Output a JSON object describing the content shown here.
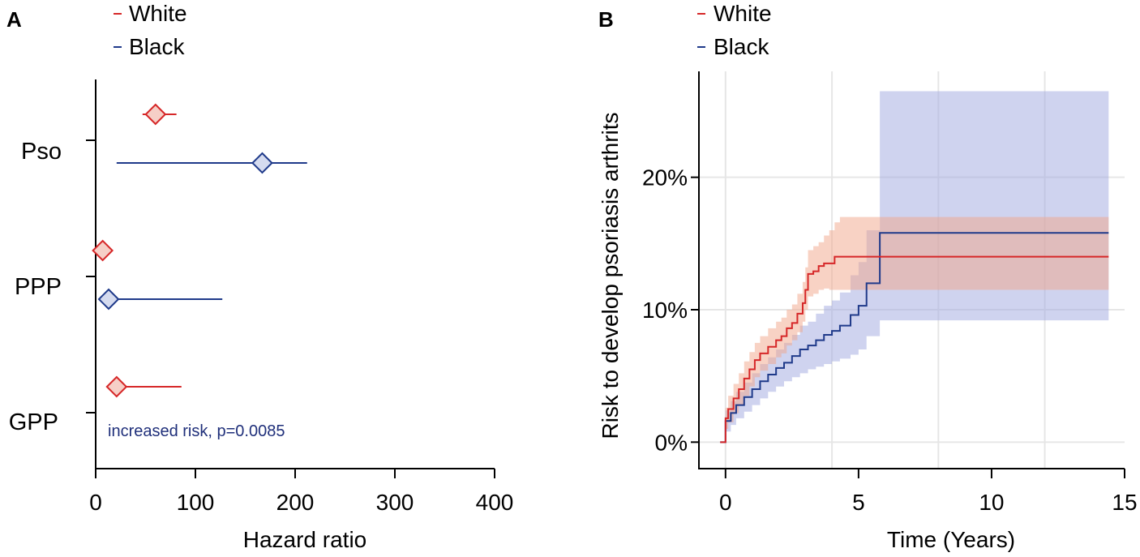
{
  "colors": {
    "white": "#d62728",
    "black": "#1f3a8a",
    "white_fill": "#f2a58a",
    "black_fill": "#9fa8e0",
    "annotation": "#1f2f7a",
    "grid": "#e6e6e6"
  },
  "chart_data": [
    {
      "panel": "A",
      "type": "forest",
      "legend": [
        "White",
        "Black"
      ],
      "legend_position": "top-left",
      "xlabel": "Hazard ratio",
      "xlim": [
        0,
        400
      ],
      "xticks": [
        0,
        100,
        200,
        300,
        400
      ],
      "xtick_labels": [
        "0",
        "100",
        "200",
        "300",
        "400"
      ],
      "categories": [
        "Pso",
        "PPP",
        "GPP"
      ],
      "series": [
        {
          "name": "White",
          "points": [
            {
              "category": "Pso",
              "hr": 60,
              "lo": 47,
              "hi": 81
            },
            {
              "category": "PPP",
              "hr": 7,
              "lo": 4,
              "hi": 12
            },
            {
              "category": "GPP",
              "hr": 21,
              "lo": 12,
              "hi": 86
            }
          ]
        },
        {
          "name": "Black",
          "points": [
            {
              "category": "Pso",
              "hr": 167,
              "lo": 21,
              "hi": 212
            },
            {
              "category": "PPP",
              "hr": 13,
              "lo": 7,
              "hi": 127
            }
          ]
        }
      ],
      "annotation": "increased risk, p=0.0085"
    },
    {
      "panel": "B",
      "type": "step",
      "legend": [
        "White",
        "Black"
      ],
      "legend_position": "top-left",
      "xlabel": "Time (Years)",
      "ylabel": "Risk to develop psoriasis arthrits",
      "xlim": [
        -1,
        15
      ],
      "ylim": [
        -2,
        28
      ],
      "xticks": [
        0,
        5,
        10,
        15
      ],
      "xtick_labels": [
        "0",
        "5",
        "10",
        "15"
      ],
      "yticks": [
        0,
        10,
        20
      ],
      "ytick_labels": [
        "0%",
        "10%",
        "20%"
      ],
      "grid": true,
      "series": [
        {
          "name": "White",
          "x": [
            -0.2,
            0,
            0.1,
            0.3,
            0.5,
            0.7,
            0.9,
            1.1,
            1.3,
            1.6,
            1.9,
            2.1,
            2.3,
            2.5,
            2.7,
            2.9,
            3.0,
            3.1,
            3.3,
            3.5,
            3.7,
            3.9,
            4.1,
            4.3,
            14.4
          ],
          "y": [
            0,
            1.8,
            2.5,
            3.3,
            4.0,
            4.8,
            5.5,
            6.2,
            6.7,
            7.2,
            7.7,
            8.0,
            8.6,
            9.0,
            9.7,
            10.5,
            11.5,
            12.7,
            12.9,
            13.3,
            13.5,
            13.5,
            14.0,
            14.0,
            14.0
          ],
          "band_lo": [
            0,
            1.0,
            1.5,
            2.2,
            2.8,
            3.5,
            4.2,
            4.9,
            5.4,
            5.9,
            6.4,
            6.7,
            7.3,
            7.7,
            8.3,
            9.1,
            10.0,
            11.0,
            11.2,
            11.5,
            11.6,
            11.5,
            11.5,
            11.5,
            11.5
          ],
          "band_hi": [
            0,
            2.6,
            3.5,
            4.4,
            5.2,
            6.1,
            6.8,
            7.5,
            8.0,
            8.6,
            9.1,
            9.4,
            10.0,
            10.4,
            11.2,
            12.1,
            13.2,
            14.5,
            14.8,
            15.1,
            15.6,
            16.0,
            16.6,
            17.0,
            17.0
          ]
        },
        {
          "name": "Black",
          "x": [
            -0.2,
            0,
            0.2,
            0.4,
            0.7,
            1.0,
            1.3,
            1.6,
            1.9,
            2.2,
            2.5,
            2.8,
            3.1,
            3.4,
            3.7,
            4.0,
            4.3,
            4.7,
            5.0,
            5.3,
            5.6,
            5.8,
            14.4
          ],
          "y": [
            0,
            1.6,
            2.2,
            2.8,
            3.4,
            4.0,
            4.6,
            5.1,
            5.6,
            6.0,
            6.5,
            7.0,
            7.3,
            7.7,
            8.1,
            8.4,
            8.8,
            9.6,
            10.3,
            12.0,
            12.0,
            15.8,
            15.8
          ],
          "band_lo": [
            0,
            0.8,
            1.3,
            1.8,
            2.3,
            2.8,
            3.3,
            3.8,
            4.2,
            4.6,
            4.9,
            5.2,
            5.5,
            5.7,
            5.9,
            6.1,
            6.3,
            6.6,
            7.0,
            8.0,
            8.0,
            9.2,
            9.2
          ],
          "band_hi": [
            0,
            2.4,
            3.1,
            3.8,
            4.5,
            5.2,
            5.9,
            6.4,
            7.0,
            7.5,
            8.1,
            8.8,
            9.1,
            9.7,
            10.3,
            10.7,
            11.3,
            12.6,
            13.6,
            16.0,
            16.0,
            26.5,
            26.5
          ]
        }
      ]
    }
  ],
  "panels": {
    "a": {
      "letter": "A",
      "legend_white": "White",
      "legend_black": "Black",
      "ylabel_pso": "Pso",
      "ylabel_ppp": "PPP",
      "ylabel_gpp": "GPP"
    },
    "b": {
      "letter": "B",
      "legend_white": "White",
      "legend_black": "Black"
    }
  }
}
